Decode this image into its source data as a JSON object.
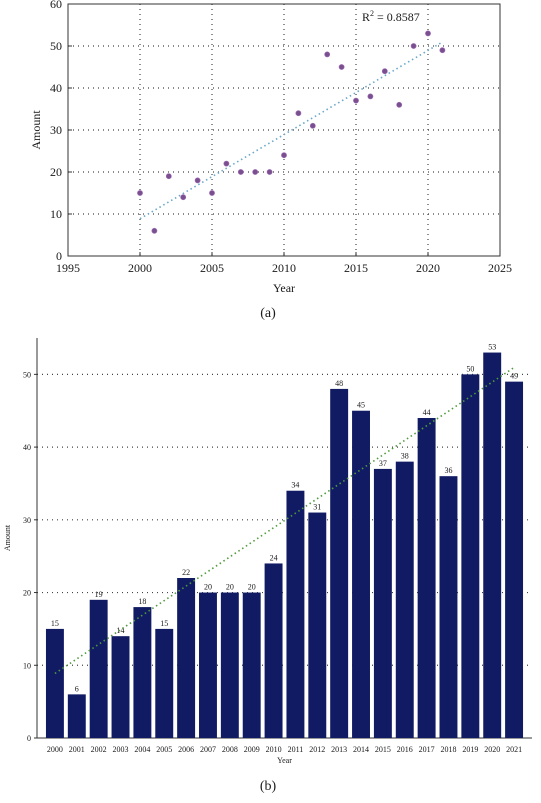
{
  "figure": {
    "caption_a": "(a)",
    "caption_b": "(b)"
  },
  "colors": {
    "marker": "#7a4f8f",
    "bar": "#111b63",
    "trend_a": "#6aa7c9",
    "trend_b": "#4f9a3a",
    "grid": "#444444"
  },
  "chart_data": [
    {
      "type": "scatter",
      "title": "",
      "xlabel": "Year",
      "ylabel": "Amount",
      "xlim": [
        1995,
        2025
      ],
      "ylim": [
        0,
        60
      ],
      "xticks": [
        1995,
        2000,
        2005,
        2010,
        2015,
        2020,
        2025
      ],
      "yticks": [
        0,
        10,
        20,
        30,
        40,
        50,
        60
      ],
      "grid": "dotted",
      "annotation": {
        "base": "R",
        "sup": "2",
        "rest": " = 0.8587"
      },
      "trendline": {
        "type": "linear",
        "style": "dotted"
      },
      "x": [
        2000,
        2001,
        2002,
        2003,
        2004,
        2005,
        2006,
        2007,
        2008,
        2009,
        2010,
        2011,
        2012,
        2013,
        2014,
        2015,
        2016,
        2017,
        2018,
        2019,
        2020,
        2021
      ],
      "y": [
        15,
        6,
        19,
        14,
        18,
        15,
        22,
        20,
        20,
        20,
        24,
        34,
        31,
        48,
        45,
        37,
        38,
        44,
        36,
        50,
        53,
        49
      ]
    },
    {
      "type": "bar",
      "title": "",
      "xlabel": "Year",
      "ylabel": "Amount",
      "ylim": [
        0,
        55
      ],
      "yticks": [
        0,
        10,
        20,
        30,
        40,
        50
      ],
      "grid": "dotted",
      "trendline": {
        "type": "linear",
        "style": "dotted"
      },
      "categories": [
        "2000",
        "2001",
        "2002",
        "2003",
        "2004",
        "2005",
        "2006",
        "2007",
        "2008",
        "2009",
        "2010",
        "2011",
        "2012",
        "2013",
        "2014",
        "2015",
        "2016",
        "2017",
        "2018",
        "2019",
        "2020",
        "2021"
      ],
      "values": [
        15,
        6,
        19,
        14,
        18,
        15,
        22,
        20,
        20,
        20,
        24,
        34,
        31,
        48,
        45,
        37,
        38,
        44,
        36,
        50,
        53,
        49
      ]
    }
  ]
}
